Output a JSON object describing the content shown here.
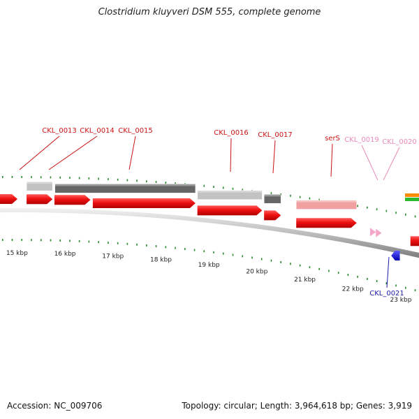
{
  "title": "Clostridium kluyveri DSM 555, complete genome",
  "footer": {
    "accession": "Accession: NC_009706",
    "topology": "Topology: circular; Length: 3,964,618 bp; Genes: 3,919"
  },
  "colors": {
    "forward_cds": "#ee1111",
    "reverse_cds": "#1a1aee",
    "rna": "#f4a6c8",
    "label_red": "#cc1111",
    "label_pink": "#e889b8",
    "label_blue": "#1a1aaa",
    "tick": "#2a8a2a",
    "backbone": "#bdbdbd",
    "similarity_light": "#c2c2c2",
    "similarity_dark": "#666666",
    "similarity_pink": "#f0a0a0"
  },
  "scale": {
    "unit": "kbp",
    "labels": [
      {
        "kbp": 15,
        "text": "15 kbp"
      },
      {
        "kbp": 16,
        "text": "16 kbp"
      },
      {
        "kbp": 17,
        "text": "17 kbp"
      },
      {
        "kbp": 18,
        "text": "18 kbp"
      },
      {
        "kbp": 19,
        "text": "19 kbp"
      },
      {
        "kbp": 20,
        "text": "20 kbp"
      },
      {
        "kbp": 21,
        "text": "21 kbp"
      },
      {
        "kbp": 22,
        "text": "22 kbp"
      },
      {
        "kbp": 23,
        "text": "23 kbp"
      }
    ]
  },
  "genes": [
    {
      "id": "g0",
      "name": "",
      "start_kbp": 14.61,
      "end_kbp": 15.01,
      "strand": "+",
      "type": "cds"
    },
    {
      "id": "g13",
      "name": "CKL_0013",
      "start_kbp": 15.2,
      "end_kbp": 15.74,
      "strand": "+",
      "type": "cds"
    },
    {
      "id": "g14",
      "name": "CKL_0014",
      "start_kbp": 15.78,
      "end_kbp": 16.53,
      "strand": "+",
      "type": "cds"
    },
    {
      "id": "g15",
      "name": "CKL_0015",
      "start_kbp": 16.58,
      "end_kbp": 18.72,
      "strand": "+",
      "type": "cds"
    },
    {
      "id": "g16",
      "name": "CKL_0016",
      "start_kbp": 18.76,
      "end_kbp": 20.11,
      "strand": "+",
      "type": "cds"
    },
    {
      "id": "g17",
      "name": "CKL_0017",
      "start_kbp": 20.15,
      "end_kbp": 20.5,
      "strand": "+",
      "type": "cds"
    },
    {
      "id": "g18",
      "name": "serS",
      "start_kbp": 20.82,
      "end_kbp": 22.08,
      "strand": "+",
      "type": "cds"
    },
    {
      "id": "g19",
      "name": "CKL_0019",
      "start_kbp": 22.36,
      "end_kbp": 22.48,
      "strand": "+",
      "type": "rna"
    },
    {
      "id": "g20",
      "name": "CKL_0020",
      "start_kbp": 22.48,
      "end_kbp": 22.6,
      "strand": "+",
      "type": "rna"
    },
    {
      "id": "g21",
      "name": "CKL_0021",
      "start_kbp": 22.8,
      "end_kbp": 22.98,
      "strand": "-",
      "type": "cds"
    },
    {
      "id": "g22",
      "name": "",
      "start_kbp": 23.2,
      "end_kbp": 24.0,
      "strand": "+",
      "type": "cds"
    }
  ],
  "similarity_blocks": [
    {
      "start_kbp": 15.2,
      "end_kbp": 15.74,
      "shade": "light"
    },
    {
      "start_kbp": 15.79,
      "end_kbp": 18.72,
      "shade": "dark"
    },
    {
      "start_kbp": 18.76,
      "end_kbp": 20.11,
      "shade": "light"
    },
    {
      "start_kbp": 20.15,
      "end_kbp": 20.5,
      "shade": "dark"
    },
    {
      "start_kbp": 20.82,
      "end_kbp": 22.08,
      "shade": "pink"
    }
  ]
}
